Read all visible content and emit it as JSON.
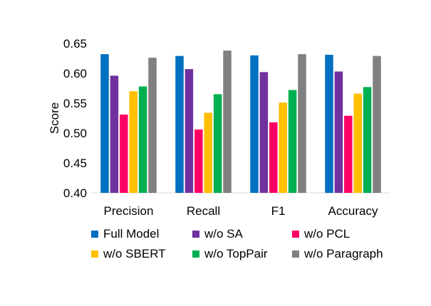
{
  "chart_data": {
    "type": "bar",
    "categories": [
      "Precision",
      "Recall",
      "F1",
      "Accuracy"
    ],
    "series": [
      {
        "name": "Full Model",
        "color": "#0070C0",
        "values": [
          0.632,
          0.629,
          0.63,
          0.631
        ]
      },
      {
        "name": "w/o SA",
        "color": "#7030A0",
        "values": [
          0.596,
          0.607,
          0.602,
          0.603
        ]
      },
      {
        "name": "w/o PCL",
        "color": "#FF0066",
        "values": [
          0.531,
          0.506,
          0.518,
          0.529
        ]
      },
      {
        "name": "w/o SBERT",
        "color": "#FFC000",
        "values": [
          0.57,
          0.534,
          0.551,
          0.566
        ]
      },
      {
        "name": "w/o TopPair",
        "color": "#00B050",
        "values": [
          0.578,
          0.565,
          0.572,
          0.577
        ]
      },
      {
        "name": "w/o Paragraph",
        "color": "#808080",
        "values": [
          0.626,
          0.638,
          0.632,
          0.629
        ]
      }
    ],
    "ylabel": "Score",
    "xlabel": "",
    "ylim": [
      0.4,
      0.65
    ],
    "yticks": [
      "0.40",
      "0.45",
      "0.50",
      "0.55",
      "0.60",
      "0.65"
    ],
    "grid": false,
    "legend_position": "bottom"
  }
}
